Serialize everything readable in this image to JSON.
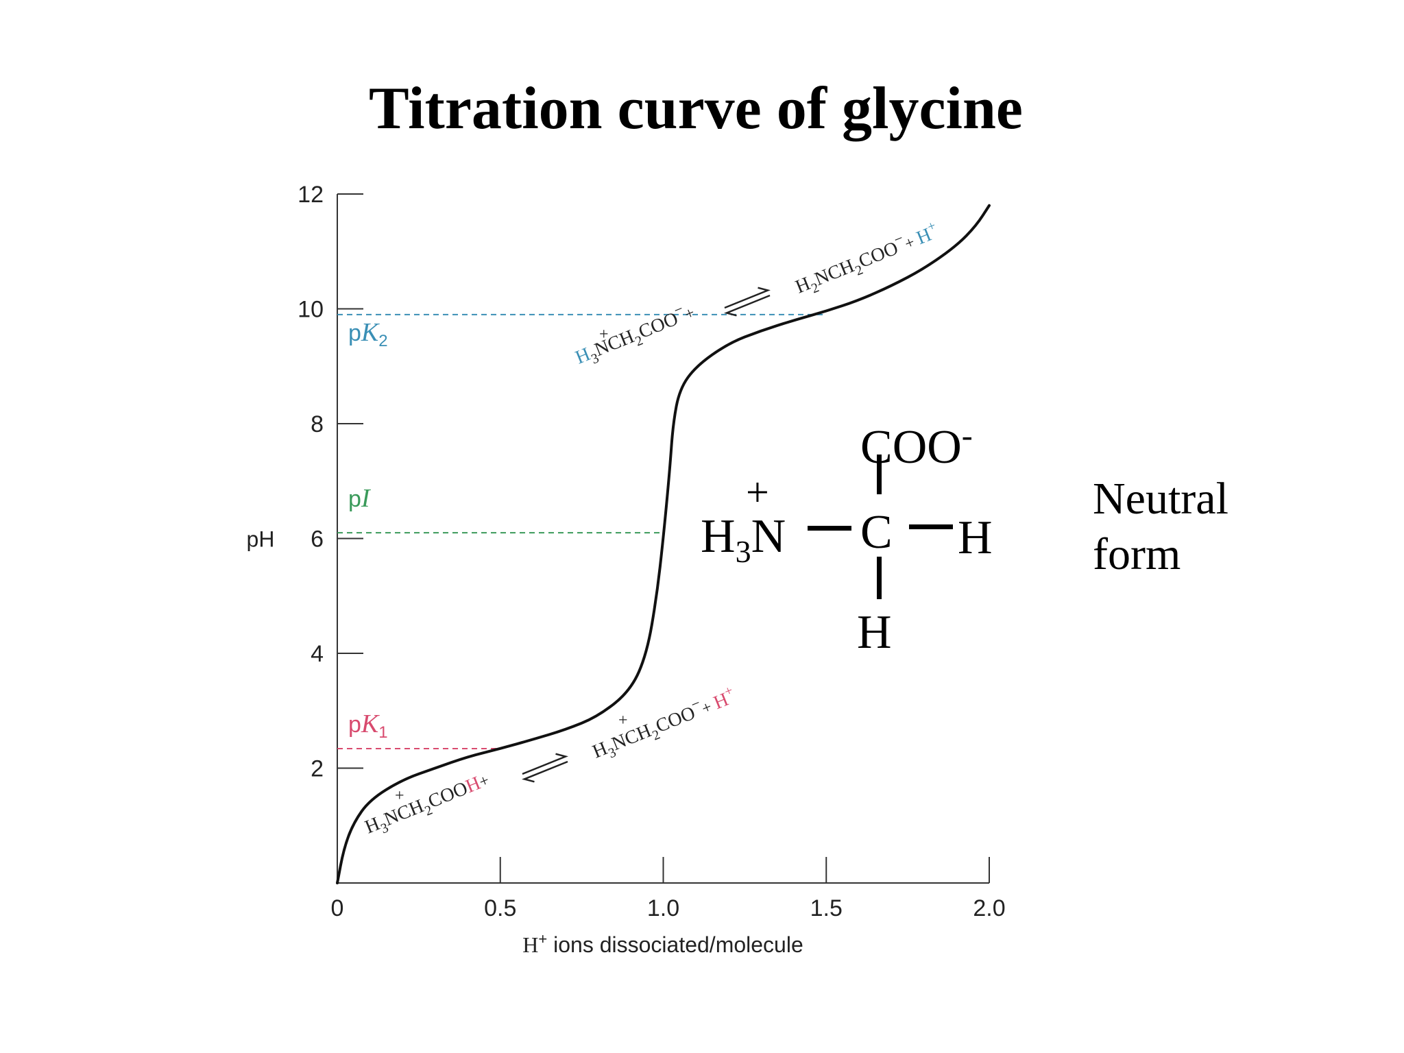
{
  "title": "Titration curve of glycine",
  "chart_data": {
    "type": "line",
    "xlabel_base": "H",
    "xlabel_sup": "+",
    "xlabel_rest": " ions dissociated/molecule",
    "ylabel": "pH",
    "xlim": [
      0,
      2.0
    ],
    "ylim": [
      0,
      12
    ],
    "x_ticks": [
      "0",
      "0.5",
      "1.0",
      "1.5",
      "2.0"
    ],
    "y_ticks": [
      "2",
      "4",
      "6",
      "8",
      "10",
      "12"
    ],
    "series": [
      {
        "values": [
          [
            0.0,
            0.0
          ],
          [
            0.02,
            0.6
          ],
          [
            0.05,
            1.05
          ],
          [
            0.1,
            1.45
          ],
          [
            0.2,
            1.8
          ],
          [
            0.3,
            2.0
          ],
          [
            0.4,
            2.2
          ],
          [
            0.5,
            2.34
          ],
          [
            0.6,
            2.5
          ],
          [
            0.7,
            2.67
          ],
          [
            0.8,
            2.9
          ],
          [
            0.9,
            3.35
          ],
          [
            0.95,
            4.0
          ],
          [
            0.98,
            5.0
          ],
          [
            1.0,
            6.0
          ],
          [
            1.02,
            7.2
          ],
          [
            1.03,
            8.0
          ],
          [
            1.05,
            8.6
          ],
          [
            1.1,
            9.0
          ],
          [
            1.2,
            9.4
          ],
          [
            1.3,
            9.62
          ],
          [
            1.4,
            9.8
          ],
          [
            1.5,
            9.96
          ],
          [
            1.6,
            10.15
          ],
          [
            1.7,
            10.4
          ],
          [
            1.8,
            10.7
          ],
          [
            1.9,
            11.1
          ],
          [
            1.96,
            11.45
          ],
          [
            2.0,
            11.8
          ]
        ]
      }
    ],
    "reference_lines": [
      {
        "label_p": "p",
        "label_var": "K",
        "label_sub": "2",
        "y": 9.9,
        "x_end": 1.5,
        "color": "#3a8fb5"
      },
      {
        "label_p": "p",
        "label_var": "I",
        "label_sub": "",
        "y": 6.1,
        "x_end": 1.0,
        "color": "#3a9a5a"
      },
      {
        "label_p": "p",
        "label_var": "K",
        "label_sub": "1",
        "y": 2.34,
        "x_end": 0.5,
        "color": "#d84a6e"
      }
    ],
    "annotations": {
      "eq1_left": [
        "H",
        "3",
        "NCH",
        "2",
        "COO",
        "H",
        "+"
      ],
      "eq1_right": [
        "H",
        "3",
        "NCH",
        "2",
        "COO",
        "−",
        "+ ",
        "H",
        "+",
        "+"
      ],
      "eq2_left": [
        "H",
        "3",
        "NCH",
        "2",
        "COO",
        "−",
        "+"
      ],
      "eq2_right": [
        "H",
        "2",
        "NCH",
        "2",
        "COO",
        "−",
        "+ ",
        "H",
        "+"
      ]
    },
    "colors": {
      "curve": "#111111",
      "axis": "#333333",
      "k1": "#d84a6e",
      "k2": "#3a8fb5",
      "pi": "#3a9a5a"
    }
  },
  "molecule": {
    "top": "COO",
    "top_charge": "-",
    "center": "C",
    "right": "H",
    "bottom": "H",
    "left_base": "H",
    "left_sub": "3",
    "left_atom": "N",
    "left_charge": "+"
  },
  "neutral_label": "Neutral form"
}
